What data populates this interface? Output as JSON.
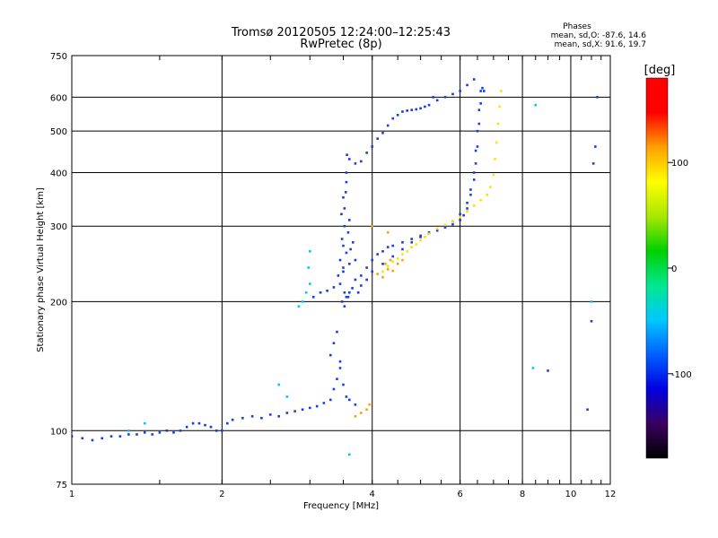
{
  "header": {
    "title_line1": "Tromsø 20120505 12:24:00–12:25:43",
    "title_line2": "RwPretec (8p)",
    "phases_title": "Phases",
    "phases_o": "mean, sd,O: -87.6, 14.6",
    "phases_x": "mean, sd,X:  91.6, 19.7"
  },
  "colorbar": {
    "label": "[deg]",
    "range": [
      -180,
      180
    ],
    "ticks": [
      {
        "value": 100,
        "label": "100"
      },
      {
        "value": 0,
        "label": "0"
      },
      {
        "value": -100,
        "label": "-100"
      }
    ],
    "stops": [
      "#000000",
      "#3a0060",
      "#0000e0",
      "#0060ff",
      "#00c8ff",
      "#00e890",
      "#00d000",
      "#a8e800",
      "#ffff00",
      "#ffa000",
      "#ff0000",
      "#ff0000"
    ]
  },
  "chart_data": {
    "type": "scatter",
    "xlabel": "Frequency [MHz]",
    "ylabel": "Stationary phase Virtual Height [km]",
    "xscale": "log",
    "yscale": "log",
    "xlim": [
      1,
      12
    ],
    "ylim": [
      75,
      750
    ],
    "grid": true,
    "xticks": [
      {
        "value": 1,
        "label": "1"
      },
      {
        "value": 2,
        "label": "2"
      },
      {
        "value": 4,
        "label": "4"
      },
      {
        "value": 6,
        "label": "6"
      },
      {
        "value": 8,
        "label": "8"
      },
      {
        "value": 10,
        "label": "10"
      },
      {
        "value": 12,
        "label": "12"
      }
    ],
    "yticks": [
      {
        "value": 75,
        "label": "75"
      },
      {
        "value": 100,
        "label": "100"
      },
      {
        "value": 200,
        "label": "200"
      },
      {
        "value": 300,
        "label": "300"
      },
      {
        "value": 400,
        "label": "400"
      },
      {
        "value": 500,
        "label": "500"
      },
      {
        "value": 600,
        "label": "600"
      },
      {
        "value": 750,
        "label": "750"
      }
    ],
    "series": [
      {
        "color": "#1a3ce8",
        "points": [
          [
            1.0,
            97
          ],
          [
            1.05,
            96
          ],
          [
            1.1,
            95
          ],
          [
            1.15,
            96
          ],
          [
            1.2,
            97
          ],
          [
            1.25,
            97
          ],
          [
            1.3,
            98
          ],
          [
            1.35,
            98
          ],
          [
            1.4,
            99
          ],
          [
            1.45,
            98
          ],
          [
            1.5,
            99
          ],
          [
            1.55,
            100
          ],
          [
            1.6,
            99
          ],
          [
            1.65,
            100
          ],
          [
            1.7,
            102
          ],
          [
            1.75,
            104
          ],
          [
            1.8,
            104
          ],
          [
            1.85,
            103
          ],
          [
            1.9,
            102
          ],
          [
            1.95,
            100
          ],
          [
            2.0,
            100
          ],
          [
            2.05,
            104
          ],
          [
            2.1,
            106
          ],
          [
            2.2,
            107
          ],
          [
            2.3,
            108
          ],
          [
            2.4,
            107
          ],
          [
            2.5,
            109
          ],
          [
            2.6,
            108
          ],
          [
            2.7,
            110
          ],
          [
            2.8,
            111
          ],
          [
            2.9,
            112
          ],
          [
            3.0,
            113
          ],
          [
            3.1,
            114
          ],
          [
            3.2,
            116
          ],
          [
            3.3,
            118
          ],
          [
            3.35,
            125
          ],
          [
            3.4,
            132
          ],
          [
            3.45,
            140
          ],
          [
            3.5,
            128
          ],
          [
            3.55,
            120
          ],
          [
            3.6,
            118
          ],
          [
            3.7,
            115
          ],
          [
            3.35,
            160
          ],
          [
            3.4,
            170
          ],
          [
            3.3,
            150
          ],
          [
            3.45,
            145
          ]
        ]
      },
      {
        "color": "#1a3ce8",
        "points": [
          [
            3.05,
            205
          ],
          [
            3.15,
            210
          ],
          [
            3.25,
            212
          ],
          [
            3.35,
            216
          ],
          [
            3.45,
            220
          ],
          [
            3.5,
            240
          ],
          [
            3.5,
            270
          ],
          [
            3.52,
            300
          ],
          [
            3.52,
            330
          ],
          [
            3.54,
            360
          ],
          [
            3.55,
            400
          ],
          [
            3.56,
            440
          ],
          [
            3.6,
            430
          ],
          [
            3.7,
            420
          ],
          [
            3.8,
            425
          ],
          [
            3.9,
            445
          ],
          [
            4.0,
            460
          ],
          [
            4.1,
            480
          ],
          [
            4.2,
            495
          ],
          [
            4.3,
            515
          ],
          [
            4.4,
            535
          ],
          [
            4.5,
            545
          ],
          [
            4.6,
            555
          ],
          [
            4.7,
            558
          ],
          [
            4.8,
            560
          ],
          [
            4.9,
            562
          ],
          [
            5.0,
            565
          ],
          [
            5.1,
            570
          ],
          [
            5.2,
            575
          ],
          [
            5.4,
            590
          ],
          [
            5.6,
            600
          ],
          [
            5.8,
            610
          ],
          [
            6.0,
            620
          ],
          [
            3.48,
            200
          ],
          [
            3.52,
            195
          ],
          [
            3.55,
            205
          ],
          [
            3.6,
            210
          ],
          [
            3.65,
            215
          ],
          [
            3.7,
            225
          ],
          [
            3.75,
            210
          ],
          [
            3.8,
            218
          ],
          [
            3.9,
            225
          ],
          [
            4.0,
            235
          ],
          [
            4.2,
            245
          ],
          [
            4.4,
            255
          ],
          [
            4.6,
            265
          ],
          [
            4.8,
            275
          ],
          [
            5.0,
            285
          ],
          [
            5.2,
            290
          ],
          [
            5.4,
            295
          ],
          [
            5.6,
            300
          ],
          [
            5.8,
            308
          ],
          [
            6.0,
            320
          ],
          [
            6.2,
            340
          ],
          [
            6.3,
            365
          ],
          [
            6.4,
            400
          ],
          [
            6.45,
            450
          ],
          [
            6.5,
            500
          ],
          [
            6.55,
            560
          ],
          [
            6.6,
            620
          ],
          [
            3.45,
            250
          ],
          [
            3.5,
            235
          ],
          [
            3.55,
            260
          ],
          [
            3.6,
            245
          ],
          [
            3.48,
            280
          ],
          [
            3.58,
            290
          ],
          [
            3.62,
            265
          ],
          [
            3.42,
            230
          ],
          [
            3.47,
            320
          ],
          [
            3.55,
            380
          ],
          [
            3.5,
            350
          ],
          [
            3.6,
            310
          ],
          [
            3.66,
            275
          ],
          [
            3.7,
            250
          ],
          [
            3.52,
            210
          ],
          [
            3.58,
            205
          ]
        ]
      },
      {
        "color": "#1a3ce8",
        "points": [
          [
            3.8,
            230
          ],
          [
            3.9,
            240
          ],
          [
            4.0,
            250
          ],
          [
            4.1,
            258
          ],
          [
            4.2,
            262
          ],
          [
            4.3,
            268
          ],
          [
            4.4,
            270
          ],
          [
            4.6,
            275
          ],
          [
            4.8,
            280
          ],
          [
            5.0,
            283
          ],
          [
            5.2,
            288
          ],
          [
            5.4,
            293
          ],
          [
            5.6,
            298
          ],
          [
            5.8,
            303
          ],
          [
            6.0,
            310
          ],
          [
            6.1,
            318
          ],
          [
            6.2,
            330
          ],
          [
            6.3,
            355
          ],
          [
            6.4,
            385
          ],
          [
            6.45,
            420
          ],
          [
            6.5,
            460
          ],
          [
            6.55,
            520
          ],
          [
            6.6,
            580
          ],
          [
            6.65,
            630
          ],
          [
            6.7,
            620
          ]
        ]
      },
      {
        "color": "#ffe000",
        "points": [
          [
            4.2,
            235
          ],
          [
            4.3,
            242
          ],
          [
            4.4,
            248
          ],
          [
            4.5,
            252
          ],
          [
            4.6,
            258
          ],
          [
            4.7,
            262
          ],
          [
            4.8,
            268
          ],
          [
            4.9,
            272
          ],
          [
            5.0,
            278
          ],
          [
            5.1,
            283
          ],
          [
            5.2,
            288
          ],
          [
            5.4,
            296
          ],
          [
            5.6,
            302
          ],
          [
            5.8,
            308
          ],
          [
            6.0,
            315
          ],
          [
            6.2,
            325
          ],
          [
            6.4,
            335
          ],
          [
            6.6,
            345
          ],
          [
            6.8,
            355
          ],
          [
            6.9,
            370
          ],
          [
            7.0,
            395
          ],
          [
            7.05,
            430
          ],
          [
            7.1,
            470
          ],
          [
            7.15,
            520
          ],
          [
            7.2,
            570
          ],
          [
            7.25,
            620
          ]
        ]
      },
      {
        "color": "#ffa000",
        "points": [
          [
            4.1,
            232
          ],
          [
            4.2,
            228
          ],
          [
            4.3,
            238
          ],
          [
            4.4,
            236
          ],
          [
            4.5,
            245
          ],
          [
            4.6,
            250
          ],
          [
            4.25,
            245
          ],
          [
            4.35,
            250
          ],
          [
            3.7,
            108
          ],
          [
            3.8,
            110
          ],
          [
            3.9,
            112
          ],
          [
            3.95,
            115
          ],
          [
            4.3,
            290
          ],
          [
            4.0,
            300
          ]
        ]
      },
      {
        "color": "#00c8ff",
        "points": [
          [
            2.85,
            195
          ],
          [
            2.9,
            200
          ],
          [
            2.95,
            210
          ],
          [
            3.0,
            220
          ],
          [
            2.98,
            240
          ],
          [
            3.0,
            262
          ],
          [
            2.6,
            128
          ],
          [
            2.7,
            120
          ],
          [
            1.4,
            104
          ],
          [
            1.3,
            100
          ],
          [
            8.5,
            575
          ],
          [
            8.4,
            140
          ],
          [
            3.6,
            88
          ],
          [
            11.0,
            200
          ]
        ]
      },
      {
        "color": "#1a3ce8",
        "points": [
          [
            9.0,
            138
          ],
          [
            10.8,
            112
          ],
          [
            11.2,
            460
          ],
          [
            11.1,
            420
          ],
          [
            11.3,
            600
          ],
          [
            11.0,
            180
          ],
          [
            6.2,
            640
          ],
          [
            6.4,
            660
          ],
          [
            5.3,
            600
          ]
        ]
      }
    ]
  }
}
